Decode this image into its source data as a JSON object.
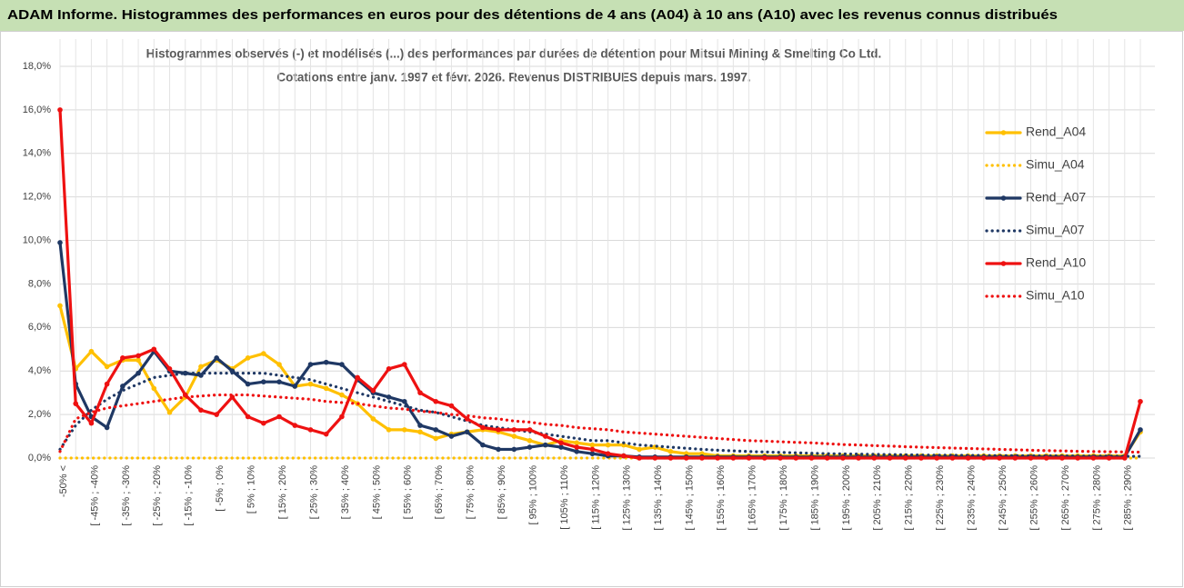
{
  "chart_data": {
    "type": "line",
    "title": "ADAM Informe. Histogrammes des performances en euros pour des détentions de 4 ans (A04) à 10 ans (A10) avec les revenus connus distribués",
    "subtitle": [
      "Histogrammes observés (-) et modélisés (...) des performances par durées de détention pour Mitsui Mining & Smelting Co Ltd.",
      "Cotations entre janv. 1997 et févr. 2026. Revenus DISTRIBUES depuis mars. 1997."
    ],
    "categories": [
      "-50% <",
      null,
      "[ -45% ; -40%",
      null,
      "[ -35% ; -30%",
      null,
      "[ -25% ; -20%",
      null,
      "[ -15% ; -10%",
      null,
      "[ -5% ; 0%",
      null,
      "[ 5% ; 10%",
      null,
      "[ 15% ; 20%",
      null,
      "[ 25% ; 30%",
      null,
      "[ 35% ; 40%",
      null,
      "[ 45% ; 50%",
      null,
      "[ 55% ; 60%",
      null,
      "[ 65% ; 70%",
      null,
      "[ 75% ; 80%",
      null,
      "[ 85% ; 90%",
      null,
      "[ 95% ; 100%",
      null,
      "[ 105% ; 110%",
      null,
      "[ 115% ; 120%",
      null,
      "[ 125% ; 130%",
      null,
      "[ 135% ; 140%",
      null,
      "[ 145% ; 150%",
      null,
      "[ 155% ; 160%",
      null,
      "[ 165% ; 170%",
      null,
      "[ 175% ; 180%",
      null,
      "[ 185% ; 190%",
      null,
      "[ 195% ; 200%",
      null,
      "[ 205% ; 210%",
      null,
      "[ 215% ; 220%",
      null,
      "[ 225% ; 230%",
      null,
      "[ 235% ; 240%",
      null,
      "[ 245% ; 250%",
      null,
      "[ 255% ; 260%",
      null,
      "[ 265% ; 270%",
      null,
      "[ 275% ; 280%",
      null,
      "[ 285% ; 290%",
      null
    ],
    "ylim": [
      0,
      18
    ],
    "yticks": [
      {
        "value": 0,
        "label": "0,0%"
      },
      {
        "value": 2,
        "label": "2,0%"
      },
      {
        "value": 4,
        "label": "4,0%"
      },
      {
        "value": 6,
        "label": "6,0%"
      },
      {
        "value": 8,
        "label": "8,0%"
      },
      {
        "value": 10,
        "label": "10,0%"
      },
      {
        "value": 12,
        "label": "12,0%"
      },
      {
        "value": 14,
        "label": "14,0%"
      },
      {
        "value": 16,
        "label": "16,0%"
      },
      {
        "value": 18,
        "label": "18,0%"
      }
    ],
    "grid": true,
    "legend": "right",
    "series": [
      {
        "name": "Rend_A04",
        "color": "#ffc000",
        "dash": "solid",
        "marker": true,
        "values": [
          7.0,
          4.1,
          4.9,
          4.2,
          4.5,
          4.5,
          3.2,
          2.1,
          2.8,
          4.2,
          4.5,
          4.1,
          4.6,
          4.8,
          4.3,
          3.3,
          3.4,
          3.2,
          2.9,
          2.5,
          1.8,
          1.3,
          1.3,
          1.2,
          0.9,
          1.1,
          1.2,
          1.3,
          1.2,
          1.0,
          0.8,
          0.6,
          0.8,
          0.7,
          0.6,
          0.6,
          0.6,
          0.4,
          0.5,
          0.3,
          0.2,
          0.2,
          0.1,
          0.1,
          0.1,
          0.1,
          0.1,
          0.1,
          0.1,
          0.1,
          0.1,
          0.1,
          0.1,
          0.1,
          0.1,
          0.1,
          0.1,
          0.1,
          0.1,
          0.1,
          0.1,
          0.1,
          0.1,
          0.1,
          0.1,
          0.1,
          0.1,
          0.1,
          0.1,
          1.2
        ]
      },
      {
        "name": "Simu_A04",
        "color": "#ffc000",
        "dash": "dotted",
        "marker": false,
        "values": [
          0,
          0,
          0,
          0,
          0,
          0,
          0,
          0,
          0,
          0,
          0,
          0,
          0,
          0,
          0,
          0,
          0,
          0,
          0,
          0,
          0,
          0,
          0,
          0,
          0,
          0,
          0,
          0,
          0,
          0,
          0,
          0,
          0,
          0,
          0,
          0,
          0,
          0,
          0,
          0,
          0,
          0,
          0,
          0,
          0,
          0,
          0,
          0,
          0,
          0,
          0,
          0,
          0,
          0,
          0,
          0,
          0,
          0,
          0,
          0,
          0,
          0,
          0,
          0,
          0,
          0,
          0,
          0,
          0,
          0
        ]
      },
      {
        "name": "Rend_A07",
        "color": "#1f3864",
        "dash": "solid",
        "marker": true,
        "values": [
          9.9,
          3.4,
          1.9,
          1.4,
          3.3,
          3.9,
          4.9,
          4.0,
          3.9,
          3.8,
          4.6,
          4.0,
          3.4,
          3.5,
          3.5,
          3.3,
          4.3,
          4.4,
          4.3,
          3.6,
          3.0,
          2.8,
          2.6,
          1.5,
          1.3,
          1.0,
          1.2,
          0.6,
          0.4,
          0.4,
          0.5,
          0.6,
          0.5,
          0.3,
          0.2,
          0.1,
          0.1,
          0.05,
          0.05,
          0.05,
          0.05,
          0.05,
          0.05,
          0.05,
          0.05,
          0.05,
          0.05,
          0.05,
          0.05,
          0.05,
          0.05,
          0.05,
          0.05,
          0.05,
          0.05,
          0.05,
          0.05,
          0.05,
          0.05,
          0.05,
          0.05,
          0.05,
          0.05,
          0.05,
          0.05,
          0.05,
          0.05,
          0.05,
          0.05,
          1.3
        ]
      },
      {
        "name": "Simu_A07",
        "color": "#1f3864",
        "dash": "dotted",
        "marker": false,
        "values": [
          0.4,
          1.5,
          2.2,
          2.7,
          3.1,
          3.4,
          3.7,
          3.8,
          3.9,
          3.9,
          3.9,
          3.9,
          3.9,
          3.9,
          3.8,
          3.7,
          3.6,
          3.4,
          3.2,
          3.0,
          2.8,
          2.6,
          2.4,
          2.2,
          2.1,
          1.9,
          1.7,
          1.5,
          1.4,
          1.3,
          1.2,
          1.1,
          1.0,
          0.9,
          0.8,
          0.8,
          0.7,
          0.6,
          0.55,
          0.5,
          0.45,
          0.4,
          0.36,
          0.33,
          0.3,
          0.28,
          0.26,
          0.24,
          0.22,
          0.2,
          0.19,
          0.18,
          0.17,
          0.16,
          0.15,
          0.14,
          0.13,
          0.13,
          0.12,
          0.12,
          0.11,
          0.11,
          0.1,
          0.1,
          0.1,
          0.09,
          0.09,
          0.09,
          0.08,
          0.08
        ]
      },
      {
        "name": "Rend_A10",
        "color": "#ee1111",
        "dash": "solid",
        "marker": true,
        "values": [
          16.0,
          2.5,
          1.6,
          3.4,
          4.6,
          4.7,
          5.0,
          4.1,
          2.9,
          2.2,
          2.0,
          2.8,
          1.9,
          1.6,
          1.9,
          1.5,
          1.3,
          1.1,
          1.9,
          3.7,
          3.1,
          4.1,
          4.3,
          3.0,
          2.6,
          2.4,
          1.8,
          1.4,
          1.3,
          1.3,
          1.3,
          1.0,
          0.7,
          0.5,
          0.4,
          0.2,
          0.1,
          0,
          0,
          0,
          0,
          0,
          0,
          0,
          0,
          0,
          0,
          0,
          0,
          0,
          0,
          0,
          0,
          0,
          0,
          0,
          0,
          0,
          0,
          0,
          0,
          0,
          0,
          0,
          0,
          0,
          0,
          0,
          0,
          2.6
        ]
      },
      {
        "name": "Simu_A10",
        "color": "#ee1111",
        "dash": "dotted",
        "marker": false,
        "values": [
          0.3,
          1.8,
          2.1,
          2.3,
          2.4,
          2.5,
          2.6,
          2.7,
          2.8,
          2.85,
          2.9,
          2.9,
          2.9,
          2.85,
          2.8,
          2.75,
          2.7,
          2.6,
          2.55,
          2.5,
          2.4,
          2.3,
          2.25,
          2.15,
          2.1,
          2.0,
          1.95,
          1.85,
          1.8,
          1.7,
          1.65,
          1.55,
          1.5,
          1.4,
          1.35,
          1.3,
          1.2,
          1.15,
          1.1,
          1.05,
          1.0,
          0.95,
          0.9,
          0.85,
          0.8,
          0.78,
          0.75,
          0.72,
          0.7,
          0.66,
          0.62,
          0.6,
          0.57,
          0.55,
          0.52,
          0.5,
          0.48,
          0.46,
          0.44,
          0.42,
          0.4,
          0.38,
          0.36,
          0.34,
          0.33,
          0.31,
          0.3,
          0.29,
          0.28,
          0.27
        ]
      }
    ]
  }
}
